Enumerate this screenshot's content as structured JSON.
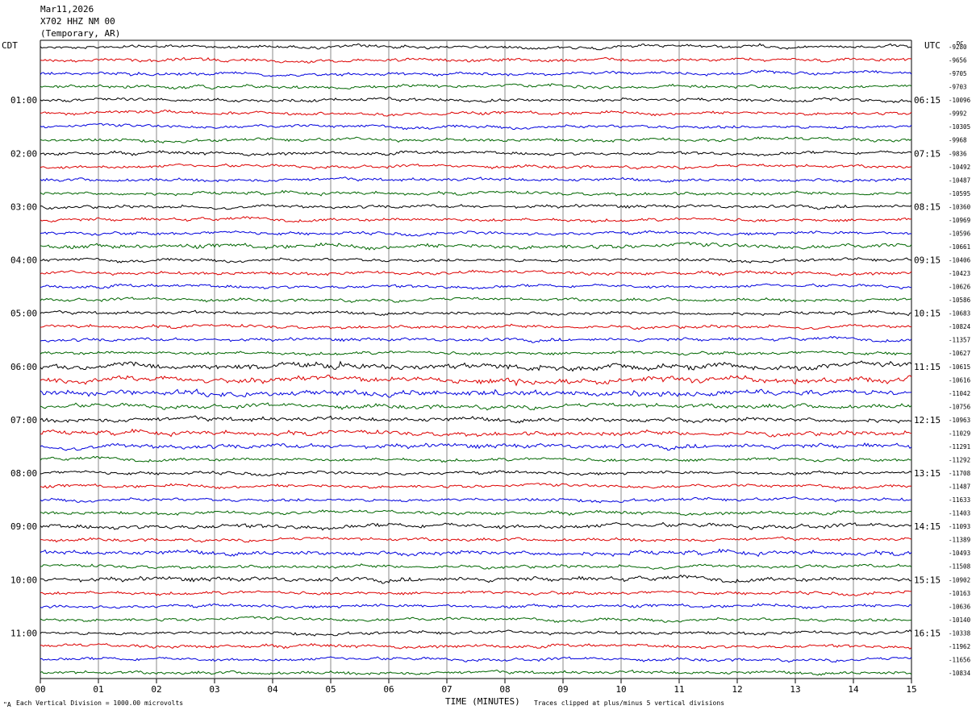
{
  "header": {
    "date": "Mar11,2026",
    "station": "X702 HHZ NM 00",
    "location": "(Temporary, AR)"
  },
  "corners": {
    "left_tz": "CDT",
    "right_tz": "UTC",
    "dc_label": "DC"
  },
  "footer": {
    "scale_note": "Each Vertical Division = 1000.00 microvolts",
    "clip_note": "Traces clipped at plus/minus 5 vertical divisions",
    "corner_mark": "\"A"
  },
  "chart_data": {
    "type": "line",
    "title": "",
    "xlabel": "TIME (MINUTES)",
    "x_ticks": [
      "00",
      "01",
      "02",
      "03",
      "04",
      "05",
      "06",
      "07",
      "08",
      "09",
      "10",
      "11",
      "12",
      "13",
      "14",
      "15"
    ],
    "xlim": [
      0,
      15
    ],
    "trace_count": 48,
    "trace_colors": [
      "#000000",
      "#dd0000",
      "#0000dd",
      "#006600"
    ],
    "left_hour_labels": [
      "01:00",
      "02:00",
      "03:00",
      "04:00",
      "05:00",
      "06:00",
      "07:00",
      "08:00",
      "09:00",
      "10:00",
      "11:00"
    ],
    "right_hour_labels": [
      "06:15",
      "07:15",
      "08:15",
      "09:15",
      "10:15",
      "11:15",
      "12:15",
      "13:15",
      "14:15",
      "15:15",
      "16:15"
    ],
    "dc_offsets": [
      "-9280",
      "-9656",
      "-9705",
      "-9703",
      "-10096",
      "-9992",
      "-10305",
      "-9968",
      "-9836",
      "-10492",
      "-10487",
      "-10595",
      "-10360",
      "-10969",
      "-10596",
      "-10661",
      "-10406",
      "-10423",
      "-10626",
      "-10586",
      "-10683",
      "-10824",
      "-11357",
      "-10627",
      "-10615",
      "-10616",
      "-11042",
      "-10756",
      "-10963",
      "-11029",
      "-11291",
      "-11292",
      "-11708",
      "-11487",
      "-11633",
      "-11403",
      "-11093",
      "-11389",
      "-10493",
      "-11508",
      "-10902",
      "-10163",
      "-10636",
      "-10140",
      "-10338",
      "-11962",
      "-11656",
      "-10834"
    ],
    "activity_level": [
      1,
      1,
      1,
      1,
      1,
      1,
      1,
      1,
      1,
      1,
      1,
      1,
      1,
      1,
      1,
      2,
      1,
      1,
      1,
      1,
      1,
      1,
      1,
      1,
      3,
      3,
      3,
      2,
      2,
      2,
      2,
      1,
      1,
      1,
      1,
      1,
      2,
      1,
      2,
      1,
      2,
      1,
      1,
      1,
      1,
      1,
      1,
      1
    ],
    "grid": "vertical lines at each minute"
  }
}
